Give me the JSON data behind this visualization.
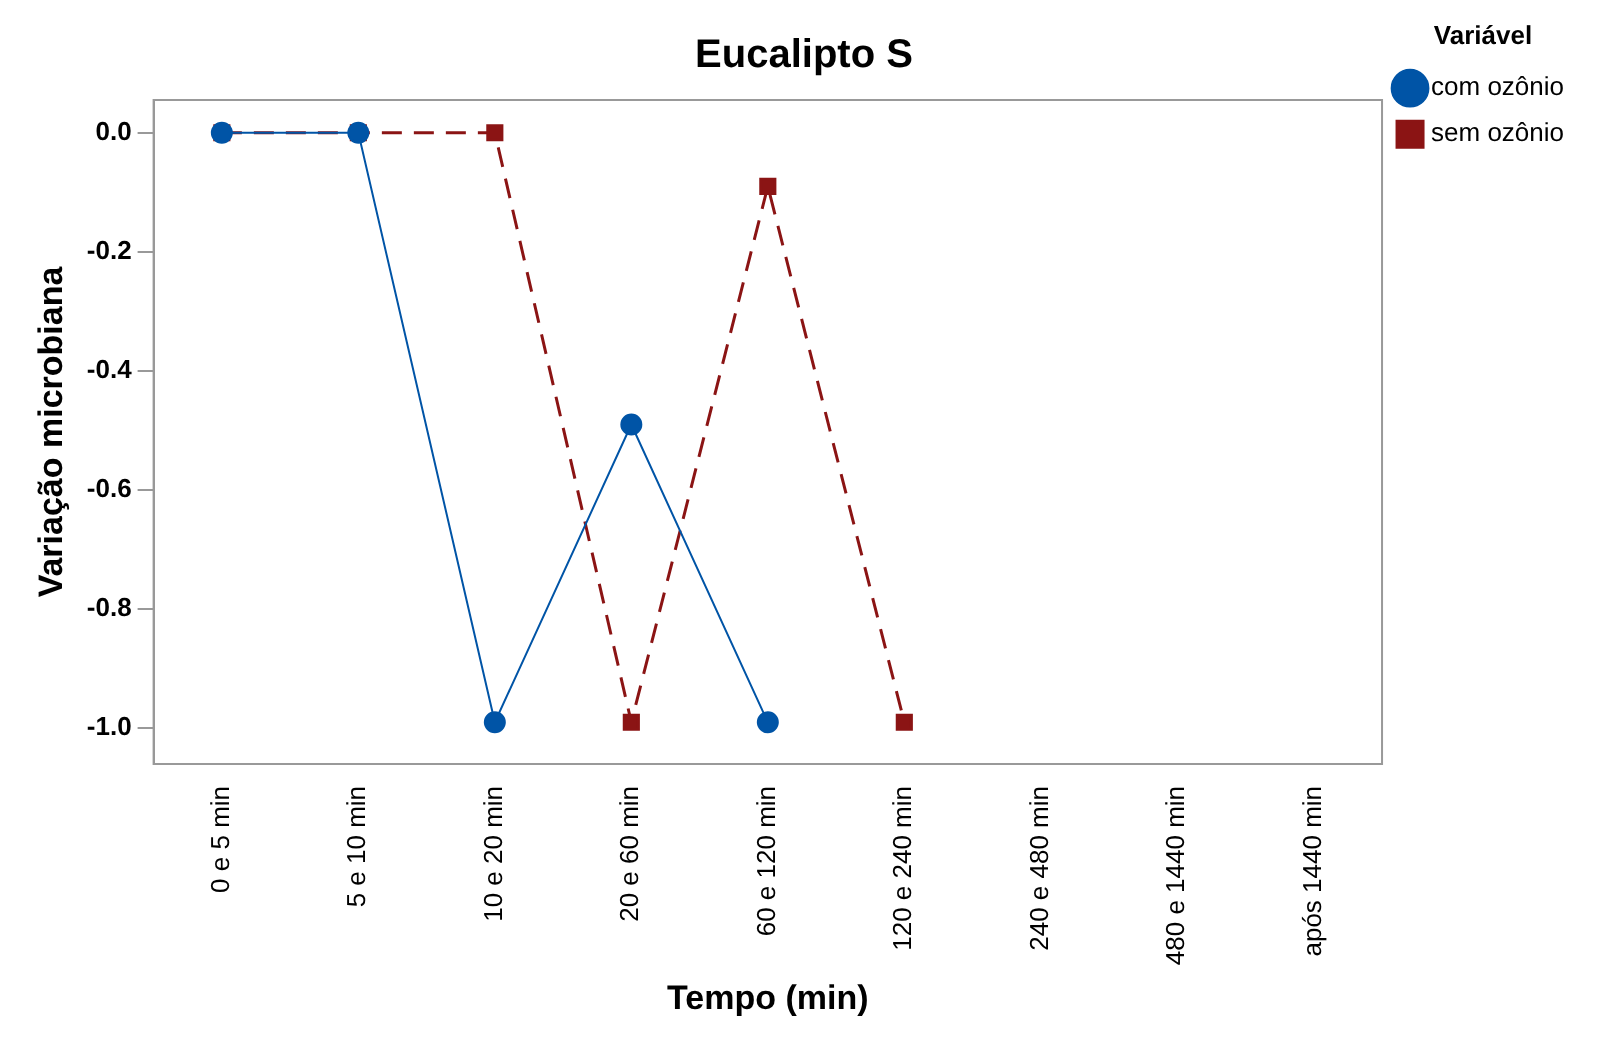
{
  "chart_data": {
    "type": "line",
    "title": "Eucalipto S",
    "xlabel": "Tempo (min)",
    "ylabel": "Variação microbiana",
    "legend_title": "Variável",
    "categories": [
      "0 e 5 min",
      "5 e 10 min",
      "10 e 20 min",
      "20 e 60 min",
      "60 e 120 min",
      "120 e 240 min",
      "240 e 480 min",
      "480 e 1440 min",
      "após 1440 min"
    ],
    "series": [
      {
        "name": "com ozônio",
        "color": "#0054a6",
        "marker": "circle",
        "line_style": "solid",
        "values": [
          0,
          0,
          -0.99,
          -0.49,
          -0.99,
          null,
          null,
          null,
          null
        ]
      },
      {
        "name": "sem ozônio",
        "color": "#8b1414",
        "marker": "square",
        "line_style": "dashed",
        "values": [
          0,
          0,
          0,
          -0.99,
          -0.09,
          -0.99,
          null,
          null,
          null
        ]
      }
    ],
    "ylim": [
      -1.06,
      0.055
    ],
    "yticks": [
      {
        "value": 0,
        "label": "0.0"
      },
      {
        "value": -0.2,
        "label": "-0.2"
      },
      {
        "value": -0.4,
        "label": "-0.4"
      },
      {
        "value": -0.6,
        "label": "-0.6"
      },
      {
        "value": -0.8,
        "label": "-0.8"
      },
      {
        "value": -1,
        "label": "-1.0"
      }
    ],
    "grid": false,
    "legend": "top right"
  }
}
